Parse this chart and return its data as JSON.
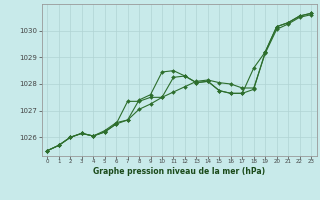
{
  "background_color": "#c8eaea",
  "grid_color": "#b0d4d4",
  "line_color": "#2d6e2d",
  "marker_color": "#2d6e2d",
  "title": "Graphe pression niveau de la mer (hPa)",
  "hours": [
    0,
    1,
    2,
    3,
    4,
    5,
    6,
    7,
    8,
    9,
    10,
    11,
    12,
    13,
    14,
    15,
    16,
    17,
    18,
    19,
    20,
    21,
    22,
    23
  ],
  "ylim": [
    1025.3,
    1031.0
  ],
  "yticks": [
    1026,
    1027,
    1028,
    1029,
    1030
  ],
  "curve_a": [
    1025.5,
    1025.7,
    1026.0,
    1026.15,
    1026.05,
    1026.2,
    1026.5,
    1026.65,
    1027.4,
    1027.6,
    1028.45,
    1028.5,
    1028.3,
    1028.05,
    1028.1,
    1027.75,
    1027.65,
    1027.65,
    1027.8,
    1029.2,
    1030.15,
    1030.3,
    1030.55,
    1030.65
  ],
  "curve_b": [
    1025.5,
    1025.7,
    1026.0,
    1026.15,
    1026.05,
    1026.2,
    1026.5,
    1027.35,
    1027.35,
    1027.5,
    1027.5,
    1028.25,
    1028.3,
    1028.05,
    1028.1,
    1027.75,
    1027.65,
    1027.65,
    1028.6,
    1029.2,
    1030.15,
    1030.3,
    1030.55,
    1030.65
  ],
  "curve_c": [
    1025.5,
    1025.7,
    1026.0,
    1026.15,
    1026.05,
    1026.25,
    1026.55,
    1026.65,
    1027.05,
    1027.25,
    1027.5,
    1027.7,
    1027.9,
    1028.1,
    1028.15,
    1028.05,
    1028.0,
    1027.85,
    1027.85,
    1029.15,
    1030.05,
    1030.25,
    1030.5,
    1030.6
  ]
}
